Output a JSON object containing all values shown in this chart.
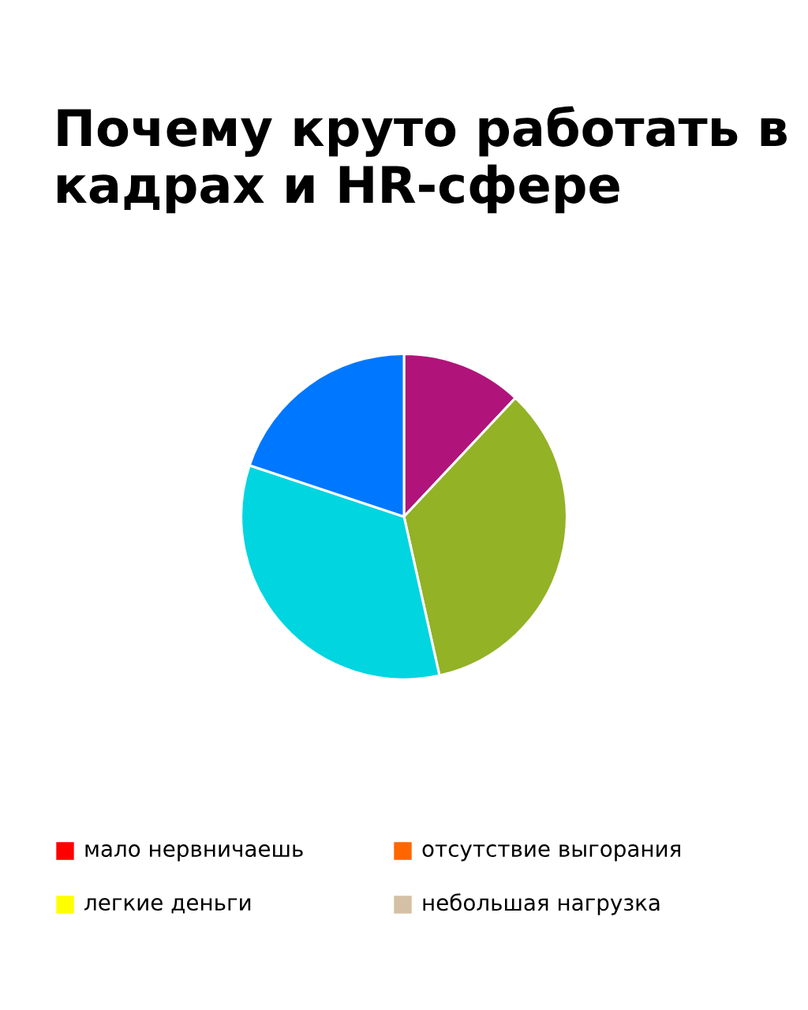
{
  "chart_data": [
    {
      "type": "pie",
      "title": "Почему круто работать в кадрах и HR-сфере",
      "categories": [
        null,
        null,
        null,
        null
      ],
      "values": [
        12,
        34.5,
        33.6,
        19.9
      ],
      "colors": [
        "#b0147a",
        "#93b226",
        "#00d5e0",
        "#0077ff"
      ]
    },
    {
      "type": "other",
      "categories": [
        "мало нервничаешь",
        "отсутствие выгорания",
        "легкие деньги",
        "небольшая нагрузка"
      ],
      "colors": [
        "#ff0000",
        "#ff6600",
        "#ffff00",
        "#d4c1a5"
      ]
    }
  ]
}
